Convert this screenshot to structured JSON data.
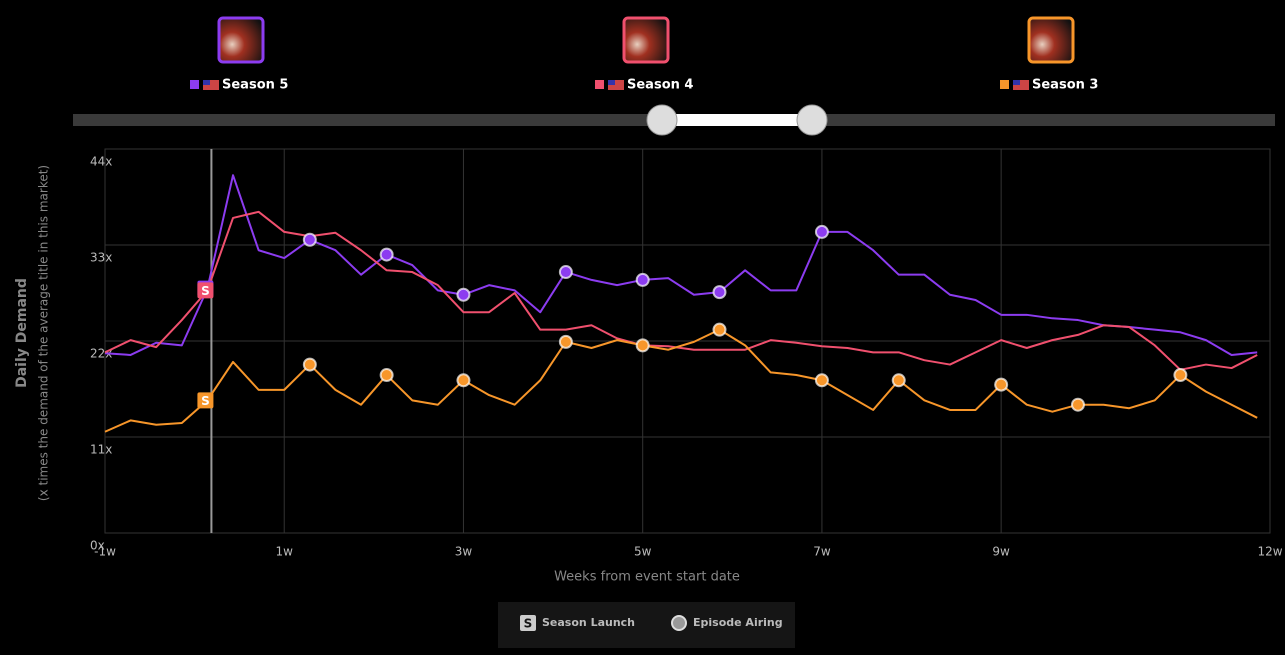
{
  "chart_data": {
    "type": "line",
    "y_title": "Daily Demand",
    "y_subtitle": "(x times the demand of the average title in this market)",
    "x_title": "Weeks from event start date",
    "x": [
      -7,
      -5,
      -3,
      -1,
      1,
      3,
      5,
      7,
      9,
      11,
      13,
      15,
      17,
      19,
      21,
      23,
      25,
      27,
      29,
      31,
      33,
      35,
      37,
      39,
      41,
      43,
      45,
      47,
      49,
      51,
      53,
      55,
      57,
      59,
      61,
      63,
      65,
      67,
      69,
      71,
      73,
      75,
      77,
      79,
      81,
      83
    ],
    "xlim": [
      -7,
      84
    ],
    "xticks": [
      {
        "value": -7,
        "label": "-1w"
      },
      {
        "value": 7,
        "label": "1w"
      },
      {
        "value": 21,
        "label": "3w"
      },
      {
        "value": 35,
        "label": "5w"
      },
      {
        "value": 49,
        "label": "7w"
      },
      {
        "value": 63,
        "label": "9w"
      },
      {
        "value": 84,
        "label": "12w"
      }
    ],
    "ylim": [
      0,
      44
    ],
    "yticks": [
      {
        "value": 0,
        "label": "0x"
      },
      {
        "value": 11,
        "label": "11x"
      },
      {
        "value": 22,
        "label": "22x"
      },
      {
        "value": 33,
        "label": "33x"
      },
      {
        "value": 44,
        "label": "44x"
      }
    ],
    "grid": true,
    "launch": 1,
    "key": {
      "launch_symbol": "S",
      "launch": "Season Launch",
      "episode": "Episode Airing"
    },
    "series": [
      {
        "name": "Season 5",
        "color": "#8c3cf0",
        "values": [
          20.6,
          20.4,
          21.8,
          21.5,
          28,
          41,
          32.4,
          31.5,
          33.6,
          32.4,
          29.6,
          31.9,
          30.7,
          27.8,
          27.3,
          28.4,
          27.8,
          25.3,
          29.9,
          29,
          28.4,
          29,
          29.2,
          27.3,
          27.6,
          30.1,
          27.8,
          27.8,
          34.5,
          34.5,
          32.4,
          29.6,
          29.6,
          27.3,
          26.7,
          25,
          25,
          24.6,
          24.4,
          23.8,
          23.6,
          23.3,
          23,
          22.1,
          20.4,
          20.7
        ],
        "episodes": [
          9,
          15,
          21,
          29,
          35,
          41,
          49
        ]
      },
      {
        "name": "Season 4",
        "color": "#f0506e",
        "values": [
          20.7,
          22.1,
          21.3,
          24.4,
          27.8,
          36.1,
          36.8,
          34.5,
          34,
          34.4,
          32.4,
          30.1,
          29.9,
          28.4,
          25.3,
          25.3,
          27.5,
          23.3,
          23.3,
          23.8,
          22.3,
          21.5,
          21.4,
          21,
          21,
          21,
          22.1,
          21.8,
          21.4,
          21.2,
          20.7,
          20.7,
          19.8,
          19.3,
          20.7,
          22.1,
          21.2,
          22.1,
          22.7,
          23.8,
          23.6,
          21.5,
          18.7,
          19.3,
          18.9,
          20.4
        ],
        "episodes": []
      },
      {
        "name": "Season 3",
        "color": "#f7962a",
        "values": [
          11.6,
          12.9,
          12.4,
          12.6,
          15.2,
          19.6,
          16.4,
          16.4,
          19.3,
          16.4,
          14.7,
          18.1,
          15.2,
          14.7,
          17.5,
          15.8,
          14.7,
          17.5,
          21.9,
          21.2,
          22.1,
          21.5,
          21,
          21.9,
          23.3,
          21.5,
          18.4,
          18.1,
          17.5,
          15.8,
          14.1,
          17.5,
          15.2,
          14.1,
          14.1,
          17,
          14.7,
          13.9,
          14.7,
          14.7,
          14.3,
          15.2,
          18.1,
          16.2,
          14.7,
          13.2
        ],
        "episodes": [
          9,
          15,
          21,
          29,
          35,
          41,
          49,
          55,
          63,
          69,
          77
        ]
      }
    ]
  }
}
